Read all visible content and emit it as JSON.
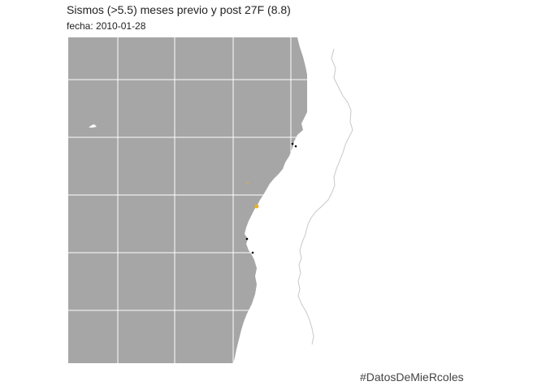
{
  "header": {
    "title": "Sismos (>5.5) meses previo y post 27F (8.8)",
    "subtitle": "fecha: 2010-01-28"
  },
  "footer": {
    "hashtag": "#DatosDeMieRcoles"
  },
  "colors": {
    "ocean": "#a6a6a6",
    "land": "#ffffff",
    "gridline": "#ffffff",
    "border": "#c8c8c8",
    "quake_recent": "#f0b020",
    "quake_other": "#000000"
  },
  "map_data": {
    "type": "map",
    "region": "central Chile",
    "earthquakes": [
      {
        "id": "eq-1",
        "category": "other"
      },
      {
        "id": "eq-2",
        "category": "other"
      },
      {
        "id": "eq-3",
        "category": "recent"
      },
      {
        "id": "eq-4",
        "category": "recent"
      },
      {
        "id": "eq-5",
        "category": "other"
      },
      {
        "id": "eq-6",
        "category": "other"
      }
    ]
  }
}
